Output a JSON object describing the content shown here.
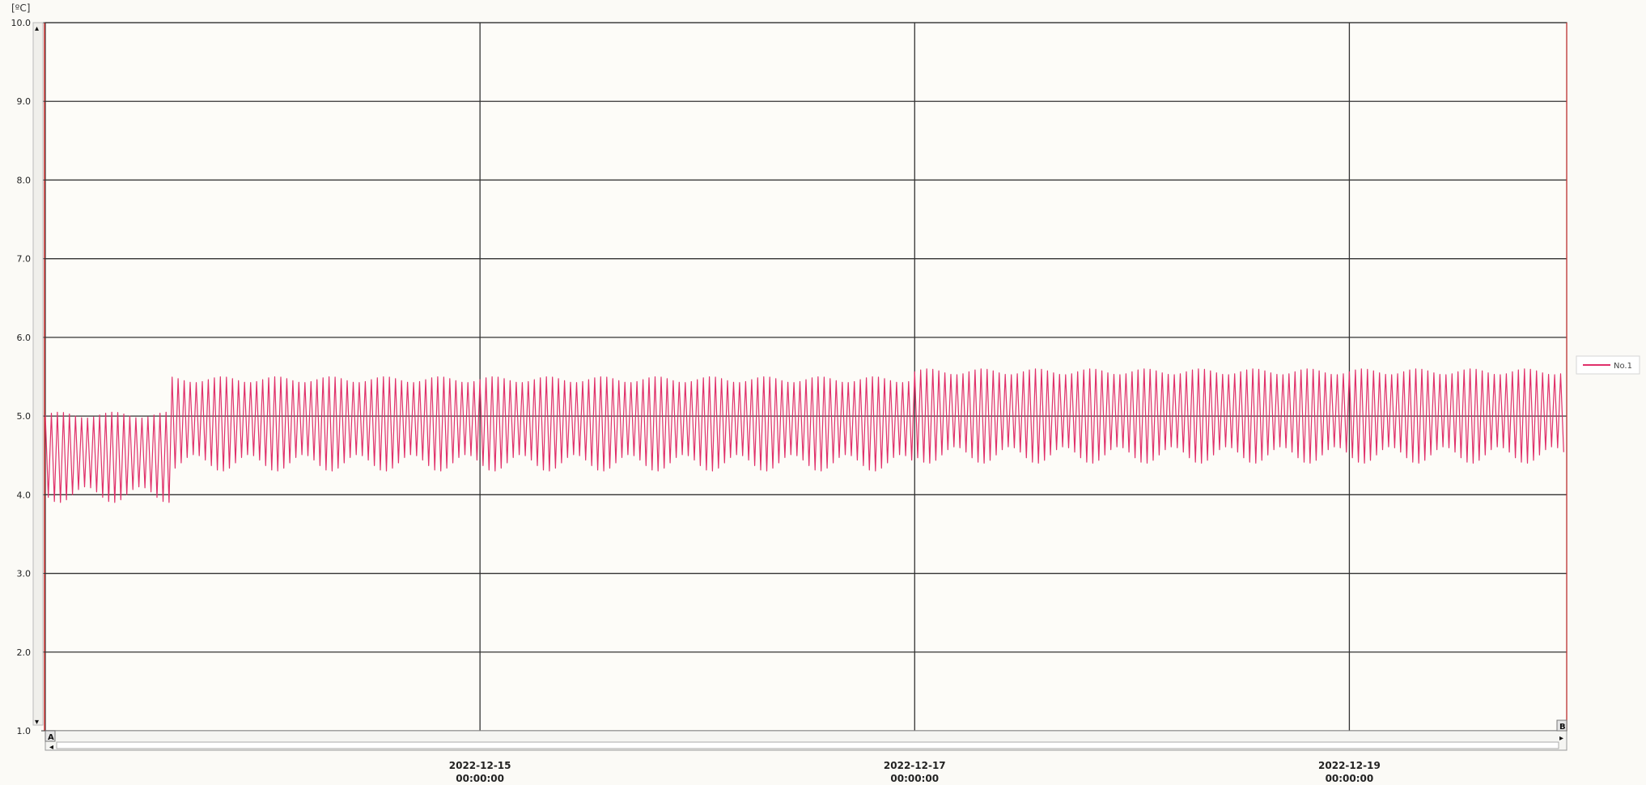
{
  "chart_data": {
    "type": "line",
    "y_unit": "[ºC]",
    "ylim": [
      1.0,
      10.0
    ],
    "y_ticks": [
      "10.0",
      "9.0",
      "8.0",
      "7.0",
      "6.0",
      "5.0",
      "4.0",
      "3.0",
      "2.0",
      "1.0"
    ],
    "x_range": [
      "2022-12-13 00:00:00",
      "2022-12-20 00:00:00"
    ],
    "x_ticks": [
      {
        "date": "2022-12-15",
        "time": "00:00:00"
      },
      {
        "date": "2022-12-17",
        "time": "00:00:00"
      },
      {
        "date": "2022-12-19",
        "time": "00:00:00"
      }
    ],
    "grid": true,
    "legend_position": "right",
    "series": [
      {
        "name": "No.1",
        "color": "#e0306a",
        "sample_interval_minutes": 20,
        "segments": [
          {
            "start": "2022-12-13 00:00:00",
            "end": "2022-12-13 14:00:00",
            "min": 3.9,
            "max": 5.05
          },
          {
            "start": "2022-12-13 14:00:00",
            "end": "2022-12-17 00:00:00",
            "min": 4.3,
            "max": 5.5
          },
          {
            "start": "2022-12-17 00:00:00",
            "end": "2022-12-20 00:00:00",
            "min": 4.4,
            "max": 5.6
          }
        ]
      }
    ]
  },
  "scrollbar": {
    "left_marker": "A",
    "right_marker": "B",
    "scroll_left_arrow": "◂",
    "scroll_right_arrow": "▸",
    "up_arrow": "▴",
    "down_arrow": "▾"
  }
}
